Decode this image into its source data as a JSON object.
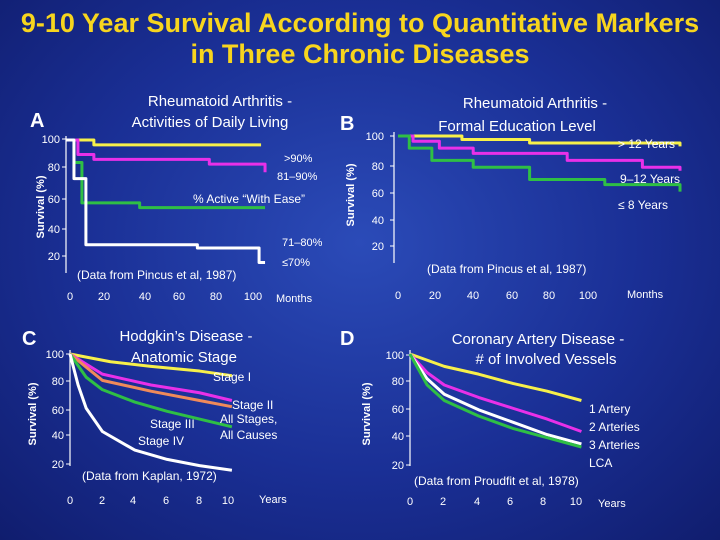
{
  "title_line1": "9-10 Year Survival According to Quantitative Markers",
  "title_line2": "in Three Chronic Diseases",
  "colors": {
    "background": "#1a2f95",
    "title": "#f7d51e",
    "white": "#ffffff",
    "yellow": "#f7f04a",
    "magenta": "#e830e8",
    "green": "#2fbf45",
    "orange": "#f08a5a"
  },
  "chart_data": [
    {
      "panel": "A",
      "type": "line",
      "title_line1": "Rheumatoid Arthritis -",
      "title_line2": "Activities of Daily Living",
      "ylabel": "Survival (%)",
      "xlabel": "Months",
      "xticks": [
        "0",
        "20",
        "40",
        "60",
        "80",
        "100"
      ],
      "yticks": [
        "20",
        "40",
        "60",
        "80",
        "100"
      ],
      "xlim": [
        0,
        105
      ],
      "ylim": [
        10,
        100
      ],
      "series": [
        {
          "name": ">90%",
          "color": "#f7f04a",
          "x": [
            0,
            10,
            14,
            98
          ],
          "y": [
            100,
            100,
            97,
            97
          ]
        },
        {
          "name": "81–90%",
          "color": "#e830e8",
          "x": [
            0,
            6,
            14,
            72,
            100
          ],
          "y": [
            100,
            91,
            88,
            85,
            80
          ]
        },
        {
          "name": "71–80%",
          "color": "#2fbf45",
          "x": [
            0,
            4,
            8,
            34,
            37,
            100
          ],
          "y": [
            100,
            86,
            61,
            61,
            58,
            58
          ]
        },
        {
          "name": "≤70%",
          "color": "#ffffff",
          "x": [
            0,
            4,
            10,
            60,
            66,
            97,
            100
          ],
          "y": [
            100,
            76,
            35,
            35,
            33,
            24,
            24
          ]
        }
      ],
      "annotations": [
        "% Active “With Ease”",
        "(Data from Pincus et al, 1987)"
      ]
    },
    {
      "panel": "B",
      "type": "line",
      "title_line1": "Rheumatoid Arthritis -",
      "title_line2": "Formal Education Level",
      "ylabel": "Survival (%)",
      "xlabel": "Months",
      "xticks": [
        "0",
        "20",
        "40",
        "60",
        "80",
        "100"
      ],
      "yticks": [
        "20",
        "40",
        "60",
        "80",
        "100"
      ],
      "xlim": [
        0,
        150
      ],
      "ylim": [
        20,
        100
      ],
      "series": [
        {
          "name": ">12 Years",
          "color": "#f7f04a",
          "x": [
            0,
            28,
            34,
            62,
            70,
            120,
            150
          ],
          "y": [
            100,
            100,
            98,
            98,
            96,
            96,
            94
          ]
        },
        {
          "name": "9–12 Years",
          "color": "#e830e8",
          "x": [
            0,
            8,
            22,
            40,
            90,
            130,
            150
          ],
          "y": [
            100,
            97,
            93,
            90,
            86,
            82,
            80
          ]
        },
        {
          "name": "≤ 8 Years",
          "color": "#2fbf45",
          "x": [
            0,
            6,
            18,
            40,
            70,
            110,
            150
          ],
          "y": [
            100,
            93,
            86,
            82,
            75,
            72,
            68
          ]
        }
      ],
      "annotations": [
        "(Data from Pincus et al, 1987)"
      ]
    },
    {
      "panel": "C",
      "type": "line",
      "title_line1": "Hodgkin’s Disease -",
      "title_line2": "Anatomic Stage",
      "ylabel": "Survival (%)",
      "xlabel": "Years",
      "xticks": [
        "0",
        "2",
        "4",
        "6",
        "8",
        "10"
      ],
      "yticks": [
        "20",
        "40",
        "60",
        "80",
        "100"
      ],
      "xlim": [
        0,
        10.5
      ],
      "ylim": [
        20,
        100
      ],
      "series": [
        {
          "name": "Stage I",
          "color": "#f7f04a",
          "x": [
            0,
            2.5,
            5,
            8,
            10
          ],
          "y": [
            100,
            95,
            92,
            89,
            86
          ]
        },
        {
          "name": "Stage II",
          "color": "#e830e8",
          "x": [
            0,
            2,
            5,
            8,
            10
          ],
          "y": [
            100,
            87,
            80,
            75,
            70
          ]
        },
        {
          "name": "All Stages, All Causes",
          "color": "#f08a5a",
          "x": [
            0,
            2,
            5,
            8,
            10
          ],
          "y": [
            100,
            83,
            76,
            70,
            66
          ]
        },
        {
          "name": "Stage III",
          "color": "#2fbf45",
          "x": [
            0,
            1,
            2,
            4,
            6,
            8,
            10
          ],
          "y": [
            100,
            85,
            77,
            69,
            63,
            58,
            53
          ]
        },
        {
          "name": "Stage IV",
          "color": "#ffffff",
          "x": [
            0,
            0.5,
            1,
            2,
            4,
            6,
            8,
            10
          ],
          "y": [
            100,
            80,
            65,
            50,
            38,
            32,
            28,
            25
          ]
        }
      ],
      "annotations": [
        "(Data from Kaplan, 1972)"
      ]
    },
    {
      "panel": "D",
      "type": "line",
      "title_line1": "Coronary Artery Disease -",
      "title_line2": "# of Involved Vessels",
      "ylabel": "Survival (%)",
      "xlabel": "Years",
      "xticks": [
        "0",
        "2",
        "4",
        "6",
        "8",
        "10"
      ],
      "yticks": [
        "20",
        "40",
        "60",
        "80",
        "100"
      ],
      "xlim": [
        0,
        10.5
      ],
      "ylim": [
        20,
        100
      ],
      "series": [
        {
          "name": "1 Artery",
          "color": "#f7f04a",
          "x": [
            0,
            2,
            4,
            6,
            8,
            10
          ],
          "y": [
            100,
            92,
            87,
            81,
            76,
            70
          ]
        },
        {
          "name": "2 Arteries",
          "color": "#e830e8",
          "x": [
            0,
            1,
            2,
            4,
            6,
            8,
            10
          ],
          "y": [
            100,
            88,
            80,
            72,
            65,
            58,
            50
          ]
        },
        {
          "name": "3 Arteries",
          "color": "#ffffff",
          "x": [
            0,
            1,
            2,
            4,
            6,
            8,
            10
          ],
          "y": [
            100,
            84,
            74,
            64,
            56,
            48,
            42
          ]
        },
        {
          "name": "LCA",
          "color": "#2fbf45",
          "x": [
            0,
            1,
            2,
            4,
            6,
            8,
            10
          ],
          "y": [
            100,
            80,
            70,
            60,
            52,
            46,
            40
          ]
        }
      ],
      "annotations": [
        "(Data from Proudfit et al, 1978)"
      ]
    }
  ],
  "labels": {
    "A_letter": "A",
    "B_letter": "B",
    "C_letter": "C",
    "D_letter": "D",
    "A_gt90": ">90%",
    "A_81_90": "81–90%",
    "A_active": "% Active “With Ease”",
    "A_71_80": "71–80%",
    "A_le70": "≤70%",
    "A_source": "(Data from Pincus et al, 1987)",
    "B_gt12": "> 12 Years",
    "B_9_12": "9–12 Years",
    "B_le8": "≤ 8 Years",
    "B_source": "(Data from Pincus et al, 1987)",
    "C_stage1": "Stage I",
    "C_stage2": "Stage II",
    "C_allstages": "All Stages,",
    "C_allcauses": "All Causes",
    "C_stage3": "Stage III",
    "C_stage4": "Stage IV",
    "C_source": "(Data from Kaplan, 1972)",
    "D_1artery": "1 Artery",
    "D_2arteries": "2 Arteries",
    "D_3arteries": "3 Arteries",
    "D_lca": "LCA",
    "D_source": "(Data from Proudfit et al, 1978)"
  }
}
